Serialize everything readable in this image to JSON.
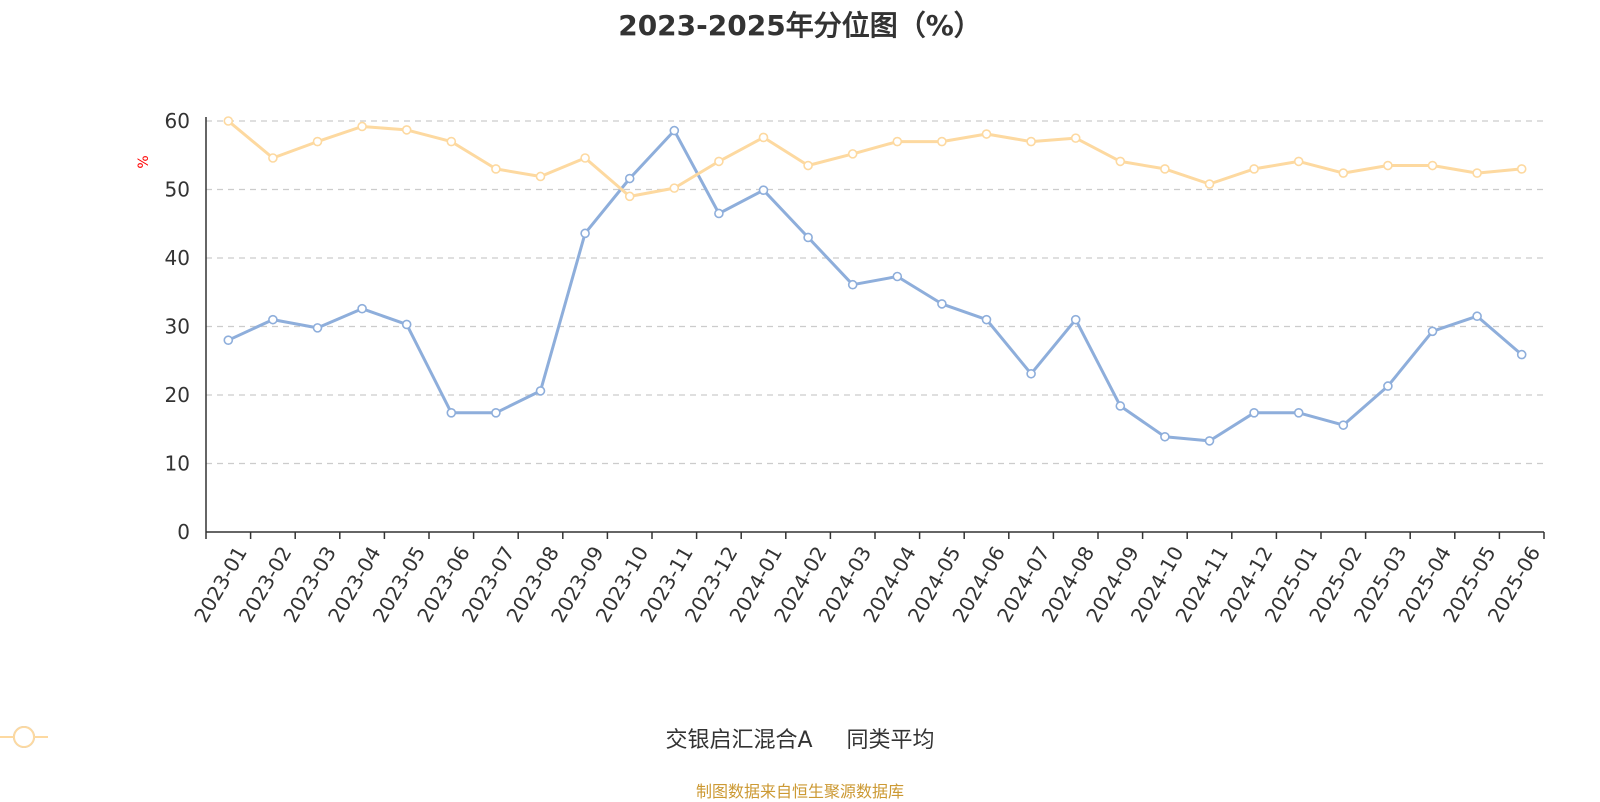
{
  "chart_data": {
    "type": "line",
    "title": "2023-2025年分位图（%）",
    "ylabel": "%",
    "ylim": [
      0,
      60
    ],
    "yticks": [
      0,
      10,
      20,
      30,
      40,
      50,
      60
    ],
    "grid": true,
    "legend_position": "bottom",
    "categories": [
      "2023-01",
      "2023-02",
      "2023-03",
      "2023-04",
      "2023-05",
      "2023-06",
      "2023-07",
      "2023-08",
      "2023-09",
      "2023-10",
      "2023-11",
      "2023-12",
      "2024-01",
      "2024-02",
      "2024-03",
      "2024-04",
      "2024-05",
      "2024-06",
      "2024-07",
      "2024-08",
      "2024-09",
      "2024-10",
      "2024-11",
      "2024-12",
      "2025-01",
      "2025-02",
      "2025-03",
      "2025-04",
      "2025-05",
      "2025-06"
    ],
    "series": [
      {
        "name": "交银启汇混合A",
        "color": "#8eaedb",
        "values": [
          28,
          31,
          29.8,
          32.6,
          30.3,
          17.4,
          17.4,
          20.6,
          43.6,
          51.6,
          58.6,
          46.5,
          49.9,
          43,
          36.1,
          37.3,
          33.3,
          31,
          23.1,
          31,
          18.4,
          13.9,
          13.3,
          17.4,
          17.4,
          15.6,
          21.3,
          29.3,
          31.5,
          25.9
        ]
      },
      {
        "name": "同类平均",
        "color": "#fdd9a0",
        "values": [
          60,
          54.6,
          57,
          59.2,
          58.7,
          57,
          53,
          51.9,
          54.6,
          49,
          50.2,
          54.1,
          57.6,
          53.5,
          55.2,
          57,
          57,
          58.1,
          57,
          57.5,
          54.1,
          53,
          50.8,
          53,
          54.1,
          52.4,
          53.5,
          53.5,
          52.4,
          53
        ]
      }
    ]
  },
  "source_text": "制图数据来自恒生聚源数据库",
  "colors": {
    "axis": "#333333",
    "grid": "#cccccc",
    "ylabel": "#ff0000",
    "source": "#cc9933"
  }
}
